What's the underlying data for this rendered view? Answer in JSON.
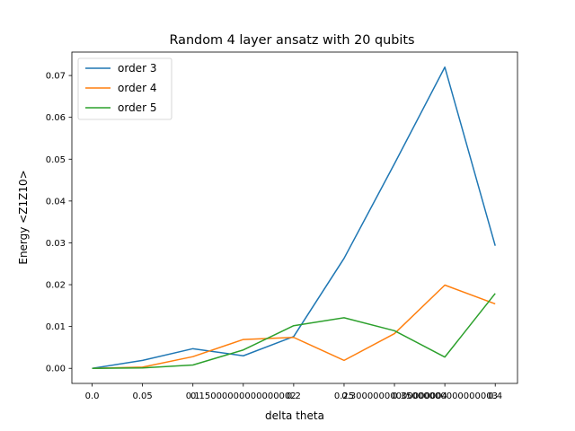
{
  "chart_data": {
    "type": "line",
    "title": "Random 4 layer ansatz with 20 qubits",
    "xlabel": "delta theta",
    "ylabel": "Energy <Z1Z10>",
    "xlim": [
      -0.0201,
      0.4221
    ],
    "ylim": [
      -0.0036,
      0.0756
    ],
    "grid": false,
    "legend_placement": "top-left",
    "x": [
      0.0,
      0.05,
      0.1,
      0.15,
      0.2,
      0.25,
      0.3,
      0.35,
      0.4
    ],
    "x_tick_labels": [
      "0.0",
      "0.05",
      "0.1",
      "0.15000000000000002",
      "0.2",
      "0.25",
      "0.30000000000000004",
      "0.35000000000000003",
      "0.4"
    ],
    "y_ticks": [
      0.0,
      0.01,
      0.02,
      0.03,
      0.04,
      0.05,
      0.06,
      0.07
    ],
    "y_tick_labels": [
      "0.00",
      "0.01",
      "0.02",
      "0.03",
      "0.04",
      "0.05",
      "0.06",
      "0.07"
    ],
    "series": [
      {
        "name": "order 3",
        "color": "#1f77b4",
        "values": [
          0.0,
          0.0019,
          0.0047,
          0.003,
          0.0076,
          0.0263,
          0.0489,
          0.072,
          0.0293
        ]
      },
      {
        "name": "order 4",
        "color": "#ff7f0e",
        "values": [
          0.0,
          0.0003,
          0.0028,
          0.0069,
          0.0074,
          0.0019,
          0.0083,
          0.0199,
          0.0154
        ]
      },
      {
        "name": "order 5",
        "color": "#2ca02c",
        "values": [
          0.0,
          0.0001,
          0.0008,
          0.0044,
          0.0102,
          0.0121,
          0.009,
          0.0027,
          0.0179
        ]
      }
    ]
  }
}
